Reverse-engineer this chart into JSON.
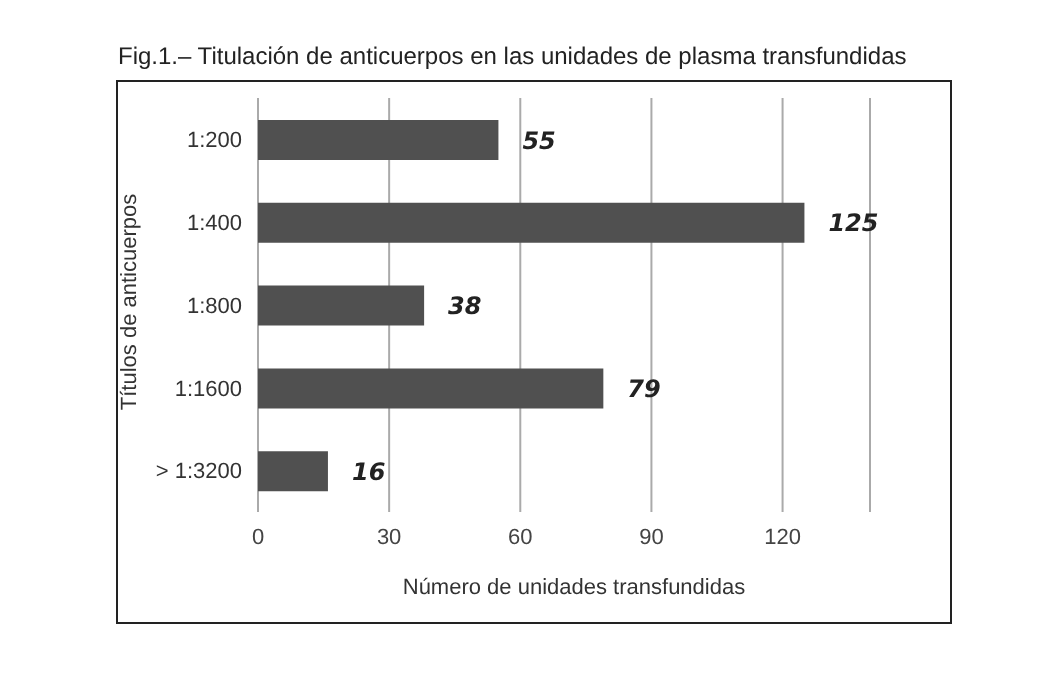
{
  "chart_data": {
    "type": "bar",
    "orientation": "horizontal",
    "title": "Fig.1.– Titulación de anticuerpos en las unidades de plasma transfundidas",
    "xlabel": "Número de unidades transfundidas",
    "ylabel": "Títulos de anticuerpos",
    "categories": [
      "1:200",
      "1:400",
      "1:800",
      "1:1600",
      "> 1:3200"
    ],
    "values": [
      55,
      125,
      38,
      79,
      16
    ],
    "color": "#505050",
    "data_labels": true,
    "xlim": [
      0,
      140
    ],
    "xticks": [
      0,
      30,
      60,
      90,
      120
    ],
    "grid": "x"
  }
}
